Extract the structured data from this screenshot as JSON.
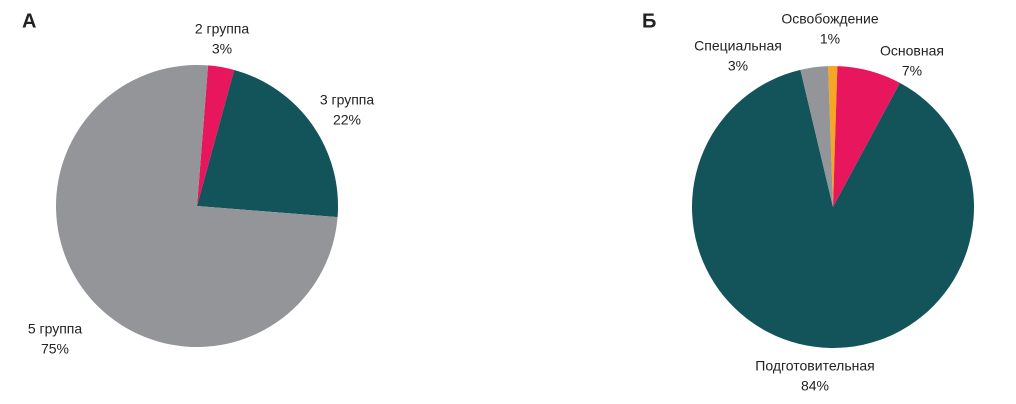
{
  "chart_data": [
    {
      "type": "pie",
      "title": "А",
      "categories": [
        "2 группа",
        "3 группа",
        "5 группа"
      ],
      "values": [
        3,
        22,
        75
      ],
      "value_labels": [
        "3%",
        "22%",
        "75%"
      ],
      "colors": [
        "#e8175d",
        "#12545a",
        "#939598"
      ]
    },
    {
      "type": "pie",
      "title": "Б",
      "categories": [
        "Освобождение",
        "Основная",
        "Подготовительная",
        "Специальная"
      ],
      "values": [
        1,
        7,
        84,
        3
      ],
      "value_labels": [
        "1%",
        "7%",
        "84%",
        "3%"
      ],
      "colors": [
        "#f6a623",
        "#e8175d",
        "#12545a",
        "#939598"
      ]
    }
  ]
}
